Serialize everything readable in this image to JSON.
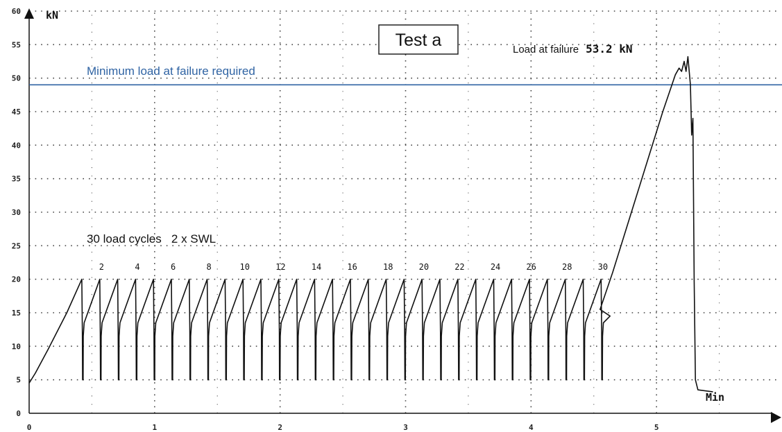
{
  "chart_data": {
    "type": "line",
    "title": "Test a",
    "xlabel": "",
    "ylabel": "kN",
    "x_unit_label": "Min",
    "xlim": [
      0,
      6
    ],
    "ylim": [
      0,
      60
    ],
    "x_ticks": [
      "0",
      "1",
      "2",
      "3",
      "4",
      "5"
    ],
    "y_ticks": [
      "0",
      "5",
      "10",
      "15",
      "20",
      "25",
      "30",
      "35",
      "40",
      "45",
      "50",
      "55",
      "60"
    ],
    "grid": true,
    "reference_line": {
      "label": "Minimum load at failure required",
      "value": 49,
      "color": "#2f63a3"
    },
    "failure_label": "Load at failure",
    "failure_value": "53.2 kN",
    "cycles_annotation": "30 load cycles   2 x SWL",
    "cycle_count_labels": [
      "2",
      "4",
      "6",
      "8",
      "10",
      "12",
      "14",
      "16",
      "18",
      "20",
      "22",
      "24",
      "26",
      "28",
      "30"
    ],
    "cycles": {
      "count": 30,
      "start": 0.42,
      "period": 0.1427,
      "peak": 20,
      "valley": 5
    },
    "series": [
      {
        "ramp_up": [
          [
            0.0,
            4.5
          ],
          [
            0.05,
            6.0
          ],
          [
            0.15,
            9.5
          ],
          [
            0.3,
            15.0
          ],
          [
            0.42,
            20.0
          ]
        ],
        "failure_ramp": [
          [
            4.55,
            15.5
          ],
          [
            4.65,
            21.0
          ],
          [
            4.8,
            30.0
          ],
          [
            4.95,
            39.0
          ],
          [
            5.05,
            45.0
          ],
          [
            5.15,
            50.5
          ],
          [
            5.18,
            51.5
          ],
          [
            5.2,
            51.0
          ],
          [
            5.22,
            52.5
          ],
          [
            5.235,
            51.0
          ],
          [
            5.25,
            53.2
          ],
          [
            5.27,
            49.0
          ],
          [
            5.28,
            41.5
          ],
          [
            5.29,
            44.0
          ],
          [
            5.3,
            20.0
          ],
          [
            5.31,
            5.0
          ],
          [
            5.33,
            3.5
          ],
          [
            5.45,
            3.2
          ]
        ]
      }
    ]
  }
}
